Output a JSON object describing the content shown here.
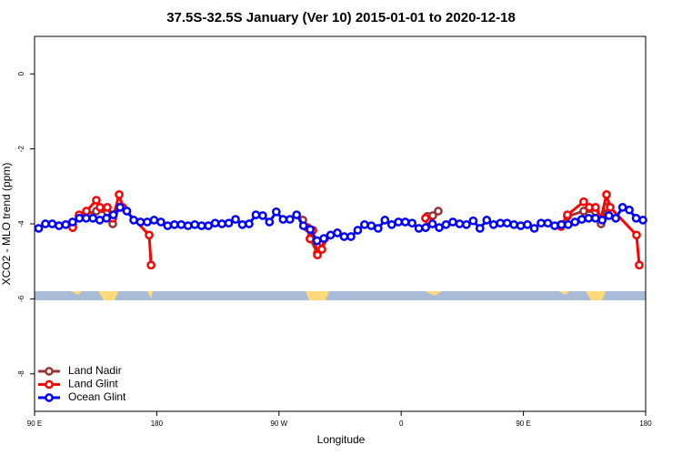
{
  "chart_data": {
    "type": "line",
    "title": "37.5S-32.5S January (Ver 10)   2015-01-01 to 2020-12-18",
    "x_label": "Longitude",
    "y_label": "XCO2 - MLO trend (ppm)",
    "xlim": [
      90,
      540
    ],
    "ylim": [
      -9,
      1
    ],
    "xticks": [
      {
        "value": 90,
        "label": "90 E"
      },
      180,
      {
        "value": 270,
        "label": "90 W"
      },
      {
        "value": 360,
        "label": "0"
      },
      {
        "value": 450,
        "label": "90 E"
      },
      {
        "value": 540,
        "label": "180"
      }
    ],
    "yticks": [
      0,
      -2,
      -4,
      -6,
      -8
    ],
    "legend": "bottom-left",
    "series": [
      {
        "name": "Land Nadir",
        "color": "#993333",
        "x": [
          118.1,
          122.8,
          135.5,
          143.6,
          147.6,
          152.3,
          220,
          287.6,
          290.9,
          292.9,
          298.3,
          301.6,
          340,
          379.3,
          383.3,
          387.3,
          430,
          477.7,
          482.4,
          494.4,
          503.1,
          507.2,
          511.2
        ],
        "values": [
          -4.02,
          -3.8,
          -3.66,
          -3.68,
          -4.0,
          -3.56,
          null,
          -3.9,
          -4.1,
          -4.39,
          -4.78,
          -4.49,
          null,
          -3.8,
          -3.78,
          -3.66,
          null,
          -4.02,
          -3.8,
          -3.66,
          -3.68,
          -4.0,
          -3.56
        ]
      },
      {
        "name": "Land Glint",
        "color": "#ff0000",
        "x": [
          118.1,
          122.8,
          128.2,
          135.5,
          138.2,
          143.6,
          147.6,
          152.3,
          155.0,
          174.4,
          175.8,
          230,
          290.9,
          292.9,
          294.9,
          298.3,
          301.6,
          303.6,
          340,
          377.9,
          381.2,
          430,
          477.7,
          482.4,
          494.4,
          498.5,
          503.1,
          507.2,
          511.2,
          513.9,
          533.3,
          535.3
        ],
        "values": [
          -4.1,
          -3.76,
          -3.66,
          -3.37,
          -3.56,
          -3.56,
          -3.85,
          -3.22,
          -3.56,
          -4.3,
          -5.1,
          null,
          -4.1,
          -4.4,
          -4.17,
          -4.83,
          -4.68,
          -4.39,
          null,
          -3.85,
          -3.95,
          null,
          -4.07,
          -3.76,
          -3.41,
          -3.56,
          -3.56,
          -3.85,
          -3.22,
          -3.56,
          -4.3,
          -5.1
        ]
      },
      {
        "name": "Ocean Glint",
        "color": "#0000ff",
        "x": [
          93,
          98,
          103,
          108,
          113,
          118,
          123,
          128,
          133,
          138,
          143,
          148,
          153,
          158,
          163,
          168,
          173,
          178,
          183,
          188,
          193,
          198,
          203,
          208,
          213,
          218,
          223,
          228,
          233,
          238,
          243,
          248,
          253,
          258,
          263,
          268,
          273,
          278,
          283,
          288,
          293,
          298,
          303,
          308,
          313,
          318,
          323,
          328,
          333,
          338,
          343,
          348,
          353,
          358,
          363,
          368,
          373,
          378,
          383,
          388,
          393,
          398,
          403,
          408,
          413,
          418,
          423,
          428,
          433,
          438,
          443,
          448,
          453,
          458,
          463,
          468,
          473,
          478,
          483,
          488,
          493,
          498,
          503,
          508,
          513,
          518,
          523,
          528,
          533,
          538
        ],
        "values": [
          -4.12,
          -4.0,
          -4.0,
          -4.05,
          -4.02,
          -3.95,
          -3.85,
          -3.85,
          -3.85,
          -3.9,
          -3.85,
          -3.76,
          -3.56,
          -3.66,
          -3.9,
          -3.95,
          -3.95,
          -3.9,
          -3.95,
          -4.05,
          -4.02,
          -4.02,
          -4.05,
          -4.02,
          -4.05,
          -4.05,
          -3.98,
          -4.0,
          -3.98,
          -3.88,
          -4.02,
          -4.0,
          -3.76,
          -3.78,
          -3.95,
          -3.68,
          -3.88,
          -3.88,
          -3.76,
          -4.05,
          -4.15,
          -4.45,
          -4.39,
          -4.3,
          -4.24,
          -4.34,
          -4.34,
          -4.17,
          -4.02,
          -4.05,
          -4.12,
          -3.9,
          -4.02,
          -3.95,
          -3.95,
          -3.98,
          -4.12,
          -4.1,
          -4.0,
          -4.1,
          -4.02,
          -3.95,
          -4.0,
          -4.02,
          -3.92,
          -4.12,
          -3.9,
          -4.02,
          -3.98,
          -3.98,
          -4.02,
          -4.05,
          -4.02,
          -4.12,
          -3.98,
          -3.98,
          -4.05,
          -4.02,
          -4.02,
          -3.95,
          -3.88,
          -3.85,
          -3.85,
          -3.9,
          -3.78,
          -3.85,
          -3.56,
          -3.63,
          -3.85,
          -3.9
        ]
      }
    ]
  }
}
